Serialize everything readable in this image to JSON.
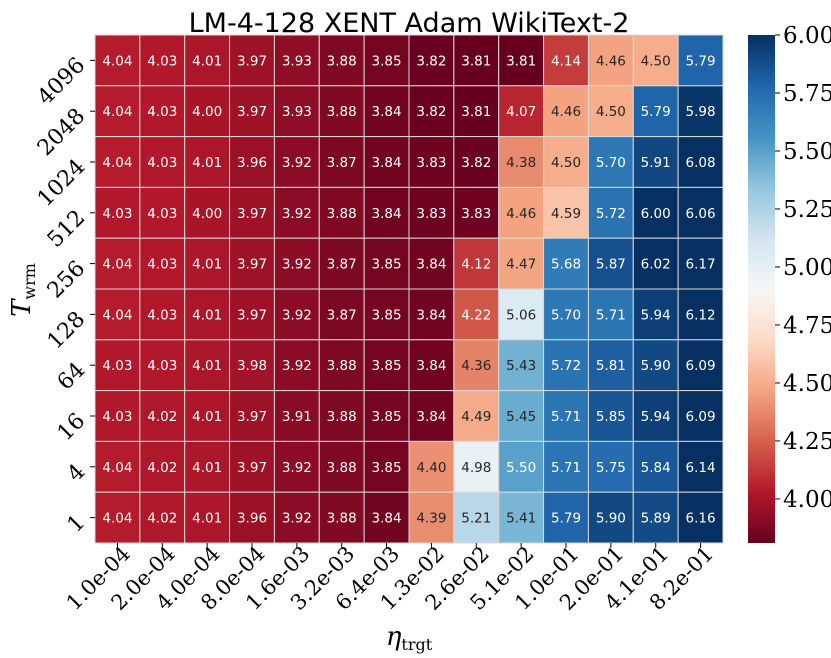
{
  "chart_data": {
    "type": "heatmap",
    "title": "LM-4-128 XENT Adam WikiText-2",
    "xlabel": "η",
    "xlabel_sub": "trgt",
    "ylabel": "T",
    "ylabel_sub": "wrm",
    "x": [
      "1.0e-04",
      "2.0e-04",
      "4.0e-04",
      "8.0e-04",
      "1.6e-03",
      "3.2e-03",
      "6.4e-03",
      "1.3e-02",
      "2.6e-02",
      "5.1e-02",
      "1.0e-01",
      "2.0e-01",
      "4.1e-01",
      "8.2e-01"
    ],
    "y": [
      "4096",
      "2048",
      "1024",
      "512",
      "256",
      "128",
      "64",
      "16",
      "4",
      "1"
    ],
    "values": [
      [
        4.04,
        4.03,
        4.01,
        3.97,
        3.93,
        3.88,
        3.85,
        3.82,
        3.81,
        3.81,
        4.14,
        4.46,
        4.5,
        5.79
      ],
      [
        4.04,
        4.03,
        4.0,
        3.97,
        3.93,
        3.88,
        3.84,
        3.82,
        3.81,
        4.07,
        4.46,
        4.5,
        5.79,
        5.98
      ],
      [
        4.04,
        4.03,
        4.01,
        3.96,
        3.92,
        3.87,
        3.84,
        3.83,
        3.82,
        4.38,
        4.5,
        5.7,
        5.91,
        6.08
      ],
      [
        4.03,
        4.03,
        4.0,
        3.97,
        3.92,
        3.88,
        3.84,
        3.83,
        3.83,
        4.46,
        4.59,
        5.72,
        6.0,
        6.06
      ],
      [
        4.04,
        4.03,
        4.01,
        3.97,
        3.92,
        3.87,
        3.85,
        3.84,
        4.12,
        4.47,
        5.68,
        5.87,
        6.02,
        6.17
      ],
      [
        4.04,
        4.03,
        4.01,
        3.97,
        3.92,
        3.87,
        3.85,
        3.84,
        4.22,
        5.06,
        5.7,
        5.71,
        5.94,
        6.12
      ],
      [
        4.03,
        4.03,
        4.01,
        3.98,
        3.92,
        3.88,
        3.85,
        3.84,
        4.36,
        5.43,
        5.72,
        5.81,
        5.9,
        6.09
      ],
      [
        4.03,
        4.02,
        4.01,
        3.97,
        3.91,
        3.88,
        3.85,
        3.84,
        4.49,
        5.45,
        5.71,
        5.85,
        5.94,
        6.09
      ],
      [
        4.04,
        4.02,
        4.01,
        3.97,
        3.92,
        3.88,
        3.85,
        4.4,
        4.98,
        5.5,
        5.71,
        5.75,
        5.84,
        6.14
      ],
      [
        4.04,
        4.02,
        4.01,
        3.96,
        3.92,
        3.88,
        3.84,
        4.39,
        5.21,
        5.41,
        5.79,
        5.9,
        5.89,
        6.16
      ]
    ],
    "colorbar": {
      "min": 3.81,
      "max": 6.0,
      "ticks": [
        6.0,
        5.75,
        5.5,
        5.25,
        5.0,
        4.75,
        4.5,
        4.25,
        4.0
      ],
      "tick_labels": [
        "6.00",
        "5.75",
        "5.50",
        "5.25",
        "5.00",
        "4.75",
        "4.50",
        "4.25",
        "4.00"
      ],
      "colormap": "RdBu"
    },
    "colors": {
      "grid_lines": "#d9d9d9",
      "text_light": "#ffffff",
      "text_dark": "#262626"
    }
  }
}
